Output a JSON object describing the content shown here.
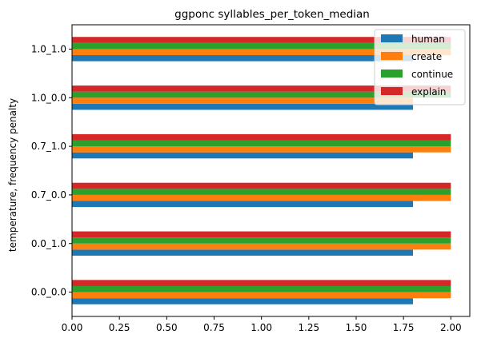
{
  "chart_data": {
    "type": "bar",
    "orientation": "horizontal",
    "title": "ggponc syllables_per_token_median",
    "xlabel": "",
    "ylabel": "temperature, frequency penalty",
    "xlim": [
      0,
      2.1
    ],
    "xticks": [
      "0.00",
      "0.25",
      "0.50",
      "0.75",
      "1.00",
      "1.25",
      "1.50",
      "1.75",
      "2.00"
    ],
    "grid": false,
    "legend_position": "top-right",
    "categories": [
      "0.0_0.0",
      "0.0_1.0",
      "0.7_0.0",
      "0.7_1.0",
      "1.0_0.0",
      "1.0_1.0"
    ],
    "series": [
      {
        "name": "human",
        "color": "#1f77b4",
        "values": [
          1.8,
          1.8,
          1.8,
          1.8,
          1.8,
          1.8
        ]
      },
      {
        "name": "create",
        "color": "#ff7f0e",
        "values": [
          2.0,
          2.0,
          2.0,
          2.0,
          1.8,
          2.0
        ]
      },
      {
        "name": "continue",
        "color": "#2ca02c",
        "values": [
          2.0,
          2.0,
          2.0,
          2.0,
          2.0,
          2.0
        ]
      },
      {
        "name": "explain",
        "color": "#d62728",
        "values": [
          2.0,
          2.0,
          2.0,
          2.0,
          2.0,
          2.0
        ]
      }
    ]
  }
}
